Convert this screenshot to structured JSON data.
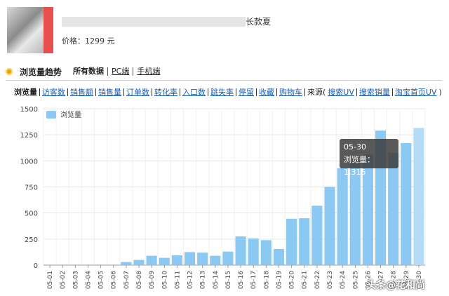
{
  "product": {
    "title_tail": "长款夏",
    "price_label": "价格：1299 元"
  },
  "section": {
    "title": "浏览量趋势",
    "scopes": [
      "所有数据",
      "PC端",
      "手机端"
    ]
  },
  "metrics": {
    "items": [
      "浏览量",
      "访客数",
      "销售额",
      "销售量",
      "订单数",
      "转化率",
      "入口数",
      "跳失率",
      "停留",
      "收藏",
      "购物车"
    ],
    "source_label": "来源(",
    "source_items": [
      "搜索UV",
      "搜索销量",
      "淘宝首页UV"
    ],
    "source_close": ")"
  },
  "tooltip": {
    "date": "05-30",
    "label": "浏览量：1,315"
  },
  "watermark": "头条@花和尚",
  "colors": {
    "bar": "#8cc9f2",
    "bar_highlight": "#b5dcf7",
    "accent_icon": "#e8a300"
  },
  "chart_data": {
    "type": "bar",
    "categories": [
      "05-01",
      "05-02",
      "05-03",
      "05-04",
      "05-05",
      "05-06",
      "05-07",
      "05-08",
      "05-09",
      "05-10",
      "05-11",
      "05-12",
      "05-13",
      "05-14",
      "05-15",
      "05-16",
      "05-17",
      "05-18",
      "05-19",
      "05-20",
      "05-21",
      "05-22",
      "05-23",
      "05-24",
      "05-25",
      "05-26",
      "05-27",
      "05-28",
      "05-29",
      "05-30"
    ],
    "series": [
      {
        "name": "浏览量",
        "values": [
          0,
          0,
          0,
          0,
          0,
          0,
          30,
          50,
          90,
          70,
          95,
          125,
          120,
          90,
          130,
          275,
          255,
          240,
          155,
          445,
          450,
          570,
          750,
          930,
          1000,
          1060,
          1290,
          1075,
          1170,
          1315
        ]
      }
    ],
    "ylim": [
      0,
      1500
    ],
    "yticks": [
      0,
      250,
      500,
      750,
      1000,
      1250,
      1500
    ],
    "legend": "top-left",
    "grid": true,
    "highlight_index": 29
  }
}
